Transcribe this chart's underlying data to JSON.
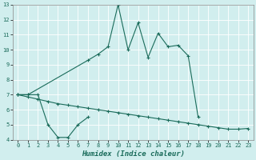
{
  "xlabel": "Humidex (Indice chaleur)",
  "xlim": [
    -0.5,
    23.5
  ],
  "ylim": [
    4,
    13
  ],
  "yticks": [
    4,
    5,
    6,
    7,
    8,
    9,
    10,
    11,
    12,
    13
  ],
  "xticks": [
    0,
    1,
    2,
    3,
    4,
    5,
    6,
    7,
    8,
    9,
    10,
    11,
    12,
    13,
    14,
    15,
    16,
    17,
    18,
    19,
    20,
    21,
    22,
    23
  ],
  "bg_color": "#d1eeee",
  "line_color": "#1a6b5a",
  "grid_color": "#b0d8d8",
  "line1_x": [
    0,
    1,
    7,
    8,
    9,
    10,
    11,
    12,
    13,
    14,
    15,
    16,
    17,
    18
  ],
  "line1_y": [
    7.0,
    7.0,
    9.3,
    9.7,
    10.2,
    13.0,
    10.0,
    11.8,
    9.5,
    11.1,
    10.2,
    10.3,
    9.6,
    5.5
  ],
  "line2_x": [
    0,
    1,
    2,
    3,
    4,
    5,
    6,
    7,
    8,
    9,
    10,
    11,
    12,
    13,
    14,
    15,
    16,
    17,
    18,
    19,
    20,
    21,
    22,
    23
  ],
  "line2_y": [
    7.0,
    6.85,
    6.7,
    6.55,
    6.4,
    6.3,
    6.2,
    6.1,
    6.0,
    5.9,
    5.8,
    5.7,
    5.6,
    5.5,
    5.4,
    5.3,
    5.2,
    5.1,
    5.0,
    4.9,
    4.8,
    4.7,
    4.7,
    4.75
  ],
  "line3_x": [
    0,
    1,
    2,
    3,
    4,
    5,
    6,
    7
  ],
  "line3_y": [
    7.0,
    7.0,
    7.0,
    5.0,
    4.15,
    4.15,
    5.0,
    5.5
  ]
}
